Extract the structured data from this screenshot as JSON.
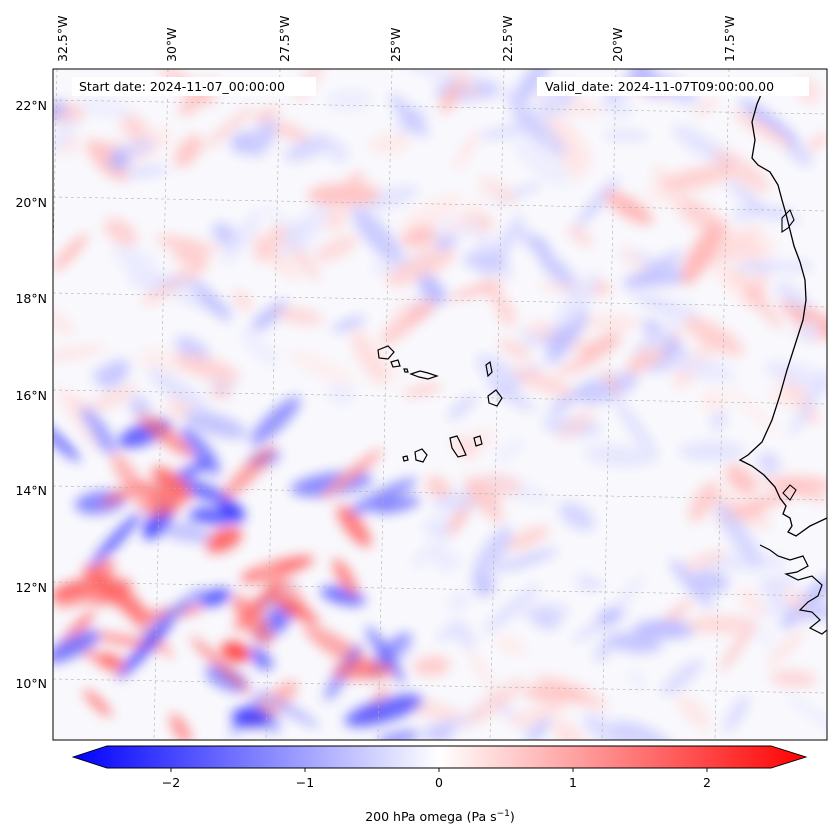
{
  "map": {
    "start_label": "Start date: 2024-11-07_00:00:00",
    "valid_label": "Valid_date: 2024-11-07T09:00:00.00",
    "lon_ticks": [
      "32.5°W",
      "30°W",
      "27.5°W",
      "25°W",
      "22.5°W",
      "20°W",
      "17.5°W"
    ],
    "lat_ticks": [
      "22°N",
      "20°N",
      "18°N",
      "16°N",
      "14°N",
      "12°N",
      "10°N"
    ],
    "field": "200 hPa omega",
    "colormap": "bwr",
    "colors": {
      "negative": "#0000ff",
      "zero": "#ffffff",
      "positive": "#ff0000",
      "coastline": "#000000",
      "gridlines": "#b0b0b0"
    }
  },
  "colorbar": {
    "label_main": "200 hPa omega (Pa s",
    "label_exp": "−1",
    "label_close": ")",
    "ticks": [
      "−2",
      "−1",
      "0",
      "1",
      "2"
    ],
    "range": [
      -2.75,
      2.75
    ],
    "extend": "both"
  }
}
